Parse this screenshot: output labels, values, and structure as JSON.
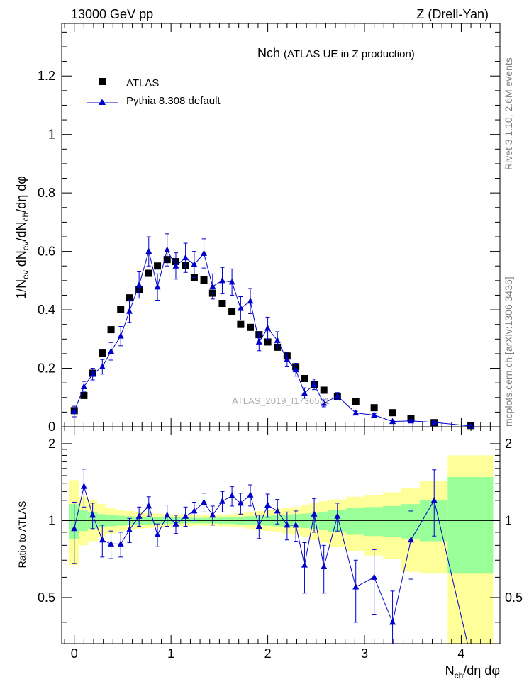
{
  "header": {
    "left": "13000 GeV pp",
    "right": "Z (Drell-Yan)"
  },
  "side": {
    "rivet": "Rivet 3.1.10, 2.6M events",
    "mcplots": "mcplots.cern.ch [arXiv:1306.3436]"
  },
  "chart_data": {
    "type": "scatter",
    "title_main": "Nch",
    "title_sub": "(ATLAS UE in Z production)",
    "watermark": "ATLAS_2019_I1736531",
    "xlabel": "N_ch/dη dφ",
    "ylabel_main": "1/N_ev dN_ev/dN_ch/dη dφ",
    "ylabel_ratio": "Ratio to ATLAS",
    "xlim": [
      -0.13,
      4.4
    ],
    "ylim_main": [
      0,
      1.38
    ],
    "ylim_ratio": [
      0.33,
      2.33
    ],
    "ratio_scale": "log",
    "x_ticks": [
      "0",
      "1",
      "2",
      "3",
      "4"
    ],
    "y_ticks_main": [
      "0",
      "0.2",
      "0.4",
      "0.6",
      "0.8",
      "1",
      "1.2"
    ],
    "y_ticks_ratio": [
      "0.5",
      "1",
      "2"
    ],
    "legend": {
      "position": "top-left",
      "entries": [
        {
          "label": "ATLAS",
          "marker": "square",
          "color": "#000000"
        },
        {
          "label": "Pythia 8.308 default",
          "marker": "triangle",
          "color": "#0000cc"
        }
      ]
    },
    "series": [
      {
        "name": "ATLAS",
        "x": [
          0.0,
          0.1,
          0.19,
          0.29,
          0.38,
          0.48,
          0.57,
          0.67,
          0.77,
          0.86,
          0.96,
          1.05,
          1.15,
          1.24,
          1.34,
          1.43,
          1.53,
          1.63,
          1.72,
          1.82,
          1.91,
          2.0,
          2.1,
          2.2,
          2.29,
          2.38,
          2.48,
          2.58,
          2.72,
          2.91,
          3.1,
          3.29,
          3.48,
          3.72,
          4.1
        ],
        "y": [
          0.055,
          0.107,
          0.183,
          0.252,
          0.332,
          0.402,
          0.441,
          0.47,
          0.525,
          0.55,
          0.572,
          0.565,
          0.552,
          0.51,
          0.502,
          0.457,
          0.422,
          0.395,
          0.35,
          0.34,
          0.315,
          0.29,
          0.272,
          0.242,
          0.205,
          0.165,
          0.145,
          0.125,
          0.102,
          0.087,
          0.065,
          0.048,
          0.027,
          0.014,
          0.004
        ]
      },
      {
        "name": "Pythia 8.308 default",
        "x": [
          0.0,
          0.1,
          0.19,
          0.29,
          0.38,
          0.48,
          0.57,
          0.67,
          0.77,
          0.86,
          0.96,
          1.05,
          1.15,
          1.24,
          1.34,
          1.43,
          1.53,
          1.63,
          1.72,
          1.82,
          1.91,
          2.0,
          2.1,
          2.2,
          2.29,
          2.38,
          2.48,
          2.58,
          2.72,
          2.91,
          3.1,
          3.29,
          3.48,
          3.72,
          4.1
        ],
        "y": [
          0.052,
          0.137,
          0.18,
          0.205,
          0.258,
          0.31,
          0.395,
          0.485,
          0.6,
          0.478,
          0.605,
          0.55,
          0.578,
          0.555,
          0.593,
          0.48,
          0.5,
          0.495,
          0.405,
          0.43,
          0.29,
          0.337,
          0.295,
          0.23,
          0.195,
          0.115,
          0.145,
          0.08,
          0.105,
          0.047,
          0.04,
          0.018,
          0.02,
          0.015,
          0.002
        ],
        "yerr": [
          0.018,
          0.018,
          0.02,
          0.025,
          0.03,
          0.033,
          0.038,
          0.045,
          0.05,
          0.045,
          0.055,
          0.045,
          0.05,
          0.045,
          0.05,
          0.043,
          0.045,
          0.045,
          0.04,
          0.043,
          0.03,
          0.038,
          0.03,
          0.025,
          0.022,
          0.018,
          0.018,
          0.012,
          0.012,
          0.006,
          0.005,
          0.003,
          0.003,
          0.002,
          0.001
        ]
      }
    ],
    "ratio": {
      "x": [
        0.0,
        0.1,
        0.19,
        0.29,
        0.38,
        0.48,
        0.57,
        0.67,
        0.77,
        0.86,
        0.96,
        1.05,
        1.15,
        1.24,
        1.34,
        1.43,
        1.53,
        1.63,
        1.72,
        1.82,
        1.91,
        2.0,
        2.1,
        2.2,
        2.29,
        2.38,
        2.48,
        2.58,
        2.72,
        2.91,
        3.1,
        3.29,
        3.48,
        3.72,
        4.1
      ],
      "y": [
        0.93,
        1.36,
        1.05,
        0.84,
        0.81,
        0.81,
        0.92,
        1.04,
        1.14,
        0.88,
        1.05,
        0.97,
        1.04,
        1.09,
        1.18,
        1.05,
        1.19,
        1.25,
        1.17,
        1.26,
        0.95,
        1.15,
        1.09,
        0.96,
        0.96,
        0.67,
        1.06,
        0.66,
        1.04,
        0.55,
        0.6,
        0.4,
        0.84,
        1.2,
        0.29
      ],
      "err_low": [
        0.25,
        0.23,
        0.12,
        0.12,
        0.1,
        0.09,
        0.1,
        0.09,
        0.1,
        0.09,
        0.1,
        0.08,
        0.09,
        0.09,
        0.1,
        0.09,
        0.11,
        0.11,
        0.11,
        0.12,
        0.1,
        0.12,
        0.12,
        0.12,
        0.13,
        0.15,
        0.16,
        0.14,
        0.13,
        0.15,
        0.17,
        0.13,
        0.25,
        0.33,
        0.0
      ],
      "err_high": [
        0.25,
        0.23,
        0.12,
        0.12,
        0.1,
        0.09,
        0.1,
        0.09,
        0.1,
        0.09,
        0.1,
        0.08,
        0.09,
        0.09,
        0.1,
        0.09,
        0.11,
        0.11,
        0.11,
        0.12,
        0.1,
        0.12,
        0.12,
        0.12,
        0.13,
        0.15,
        0.16,
        0.14,
        0.13,
        0.15,
        0.17,
        0.13,
        0.25,
        0.38,
        0.0
      ]
    },
    "uncertainty_bands": {
      "bin_edges": [
        -0.05,
        0.05,
        0.14,
        0.24,
        0.33,
        0.43,
        0.52,
        0.62,
        0.72,
        0.81,
        0.91,
        1.0,
        1.1,
        1.2,
        1.29,
        1.38,
        1.48,
        1.58,
        1.67,
        1.77,
        1.86,
        1.96,
        2.05,
        2.15,
        2.24,
        2.34,
        2.43,
        2.53,
        2.62,
        2.81,
        3.0,
        3.19,
        3.38,
        3.57,
        3.86,
        4.33
      ],
      "stat_low": [
        0.85,
        0.91,
        0.93,
        0.94,
        0.95,
        0.955,
        0.96,
        0.965,
        0.965,
        0.97,
        0.97,
        0.97,
        0.975,
        0.975,
        0.975,
        0.975,
        0.97,
        0.97,
        0.965,
        0.96,
        0.96,
        0.955,
        0.95,
        0.945,
        0.94,
        0.935,
        0.93,
        0.92,
        0.9,
        0.88,
        0.87,
        0.86,
        0.85,
        0.83,
        0.62
      ],
      "stat_high": [
        1.16,
        1.1,
        1.08,
        1.06,
        1.05,
        1.045,
        1.04,
        1.035,
        1.035,
        1.03,
        1.03,
        1.03,
        1.025,
        1.025,
        1.025,
        1.025,
        1.03,
        1.03,
        1.035,
        1.04,
        1.04,
        1.045,
        1.05,
        1.055,
        1.06,
        1.065,
        1.07,
        1.08,
        1.1,
        1.12,
        1.13,
        1.14,
        1.16,
        1.2,
        1.48
      ],
      "tot_low": [
        0.67,
        0.8,
        0.83,
        0.86,
        0.89,
        0.91,
        0.92,
        0.93,
        0.935,
        0.94,
        0.945,
        0.95,
        0.95,
        0.955,
        0.955,
        0.955,
        0.95,
        0.945,
        0.94,
        0.93,
        0.92,
        0.91,
        0.9,
        0.89,
        0.88,
        0.86,
        0.84,
        0.82,
        0.79,
        0.76,
        0.73,
        0.71,
        0.63,
        0.62,
        0.33
      ],
      "tot_high": [
        1.44,
        1.24,
        1.2,
        1.16,
        1.12,
        1.1,
        1.09,
        1.08,
        1.07,
        1.065,
        1.06,
        1.055,
        1.05,
        1.05,
        1.05,
        1.05,
        1.055,
        1.06,
        1.07,
        1.08,
        1.09,
        1.1,
        1.11,
        1.12,
        1.13,
        1.15,
        1.17,
        1.19,
        1.21,
        1.24,
        1.26,
        1.29,
        1.34,
        1.43,
        1.8
      ]
    },
    "colors": {
      "data": "#000000",
      "mc": "#0000cc",
      "band_stat": "#99ff99",
      "band_total": "#ffff99",
      "watermark": "#b0b0b0",
      "side_text": "#808080"
    }
  }
}
